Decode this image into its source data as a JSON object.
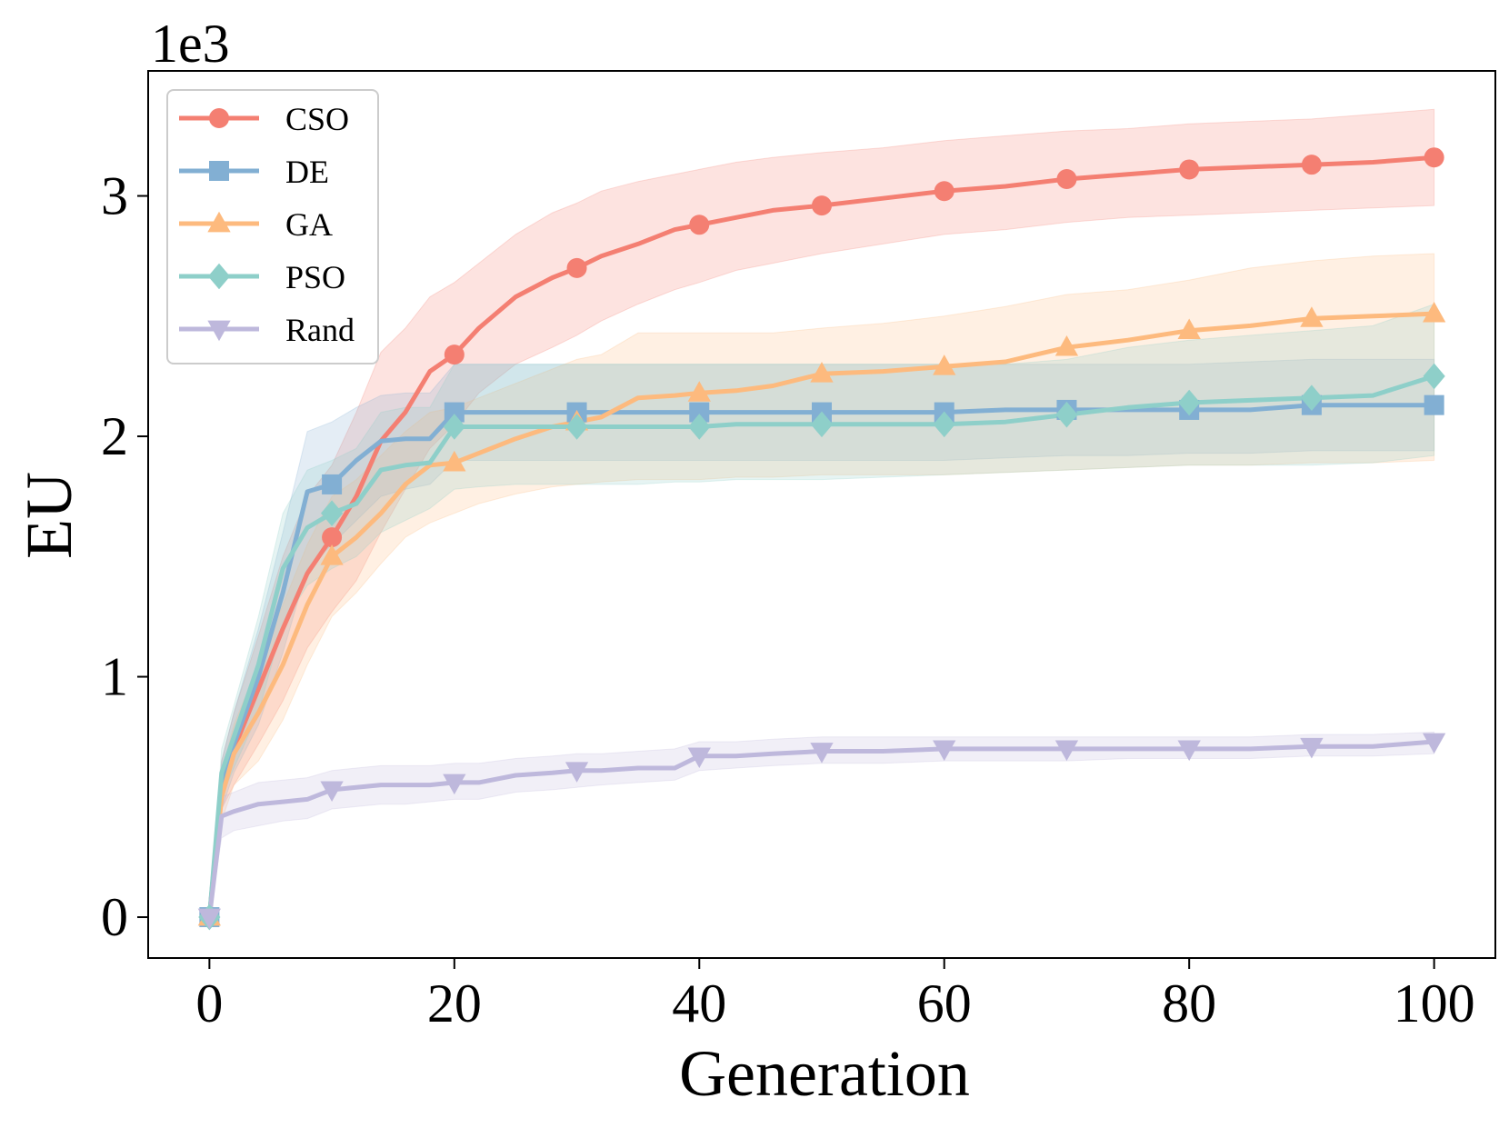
{
  "chart_data": {
    "type": "line",
    "title": "",
    "xlabel": "Generation",
    "ylabel": "EU",
    "y_multiplier_label": "1e3",
    "xlim": [
      -5,
      105
    ],
    "ylim": [
      -0.17,
      3.52
    ],
    "xticks": [
      0,
      20,
      40,
      60,
      80,
      100
    ],
    "xtick_labels": [
      "0",
      "20",
      "40",
      "60",
      "80",
      "100"
    ],
    "yticks": [
      0,
      1,
      2,
      3
    ],
    "ytick_labels": [
      "0",
      "1",
      "2",
      "3"
    ],
    "grid": false,
    "legend_position": "top-left",
    "x": [
      0,
      1,
      2,
      4,
      6,
      8,
      10,
      12,
      14,
      16,
      18,
      20,
      22,
      25,
      28,
      30,
      32,
      35,
      38,
      40,
      43,
      46,
      50,
      55,
      60,
      65,
      70,
      75,
      80,
      85,
      90,
      95,
      100
    ],
    "series": [
      {
        "name": "CSO",
        "color": "#F47F72",
        "marker": "circle",
        "values": [
          0,
          0.55,
          0.7,
          0.95,
          1.2,
          1.43,
          1.58,
          1.75,
          1.98,
          2.1,
          2.27,
          2.34,
          2.45,
          2.58,
          2.66,
          2.7,
          2.75,
          2.8,
          2.86,
          2.88,
          2.91,
          2.94,
          2.96,
          2.99,
          3.02,
          3.04,
          3.07,
          3.09,
          3.11,
          3.12,
          3.13,
          3.14,
          3.16
        ],
        "lower": [
          0,
          0.45,
          0.55,
          0.72,
          0.9,
          1.12,
          1.27,
          1.4,
          1.6,
          1.78,
          1.95,
          2.05,
          2.18,
          2.3,
          2.37,
          2.42,
          2.48,
          2.55,
          2.61,
          2.64,
          2.69,
          2.72,
          2.76,
          2.8,
          2.84,
          2.86,
          2.89,
          2.91,
          2.92,
          2.93,
          2.94,
          2.95,
          2.96
        ],
        "upper": [
          0,
          0.65,
          0.85,
          1.17,
          1.5,
          1.75,
          1.88,
          2.1,
          2.35,
          2.45,
          2.58,
          2.64,
          2.72,
          2.84,
          2.93,
          2.97,
          3.02,
          3.06,
          3.09,
          3.11,
          3.14,
          3.16,
          3.18,
          3.2,
          3.23,
          3.25,
          3.27,
          3.28,
          3.3,
          3.31,
          3.32,
          3.34,
          3.36
        ],
        "marker_x": [
          0,
          10,
          20,
          30,
          40,
          50,
          60,
          70,
          80,
          90,
          100
        ],
        "marker_values": [
          0,
          1.58,
          2.34,
          2.7,
          2.88,
          2.96,
          3.02,
          3.07,
          3.11,
          3.13,
          3.16
        ]
      },
      {
        "name": "DE",
        "color": "#82AFD3",
        "marker": "square",
        "values": [
          0,
          0.55,
          0.72,
          1.0,
          1.35,
          1.77,
          1.8,
          1.9,
          1.98,
          1.99,
          1.99,
          2.1,
          2.1,
          2.1,
          2.1,
          2.1,
          2.1,
          2.1,
          2.1,
          2.1,
          2.1,
          2.1,
          2.1,
          2.1,
          2.1,
          2.11,
          2.11,
          2.11,
          2.11,
          2.11,
          2.13,
          2.13,
          2.13
        ],
        "lower": [
          0,
          0.45,
          0.6,
          0.8,
          1.1,
          1.45,
          1.55,
          1.65,
          1.75,
          1.78,
          1.8,
          1.9,
          1.9,
          1.9,
          1.9,
          1.9,
          1.9,
          1.9,
          1.9,
          1.9,
          1.9,
          1.9,
          1.9,
          1.9,
          1.9,
          1.91,
          1.92,
          1.92,
          1.93,
          1.93,
          1.94,
          1.94,
          1.94
        ],
        "upper": [
          0,
          0.65,
          0.85,
          1.2,
          1.6,
          2.02,
          2.06,
          2.12,
          2.17,
          2.18,
          2.18,
          2.3,
          2.3,
          2.3,
          2.3,
          2.3,
          2.3,
          2.3,
          2.3,
          2.3,
          2.3,
          2.3,
          2.3,
          2.3,
          2.3,
          2.3,
          2.3,
          2.3,
          2.3,
          2.31,
          2.32,
          2.32,
          2.32
        ],
        "marker_x": [
          0,
          10,
          20,
          30,
          40,
          50,
          60,
          70,
          80,
          90,
          100
        ],
        "marker_values": [
          0,
          1.8,
          2.1,
          2.1,
          2.1,
          2.1,
          2.1,
          2.11,
          2.11,
          2.13,
          2.13
        ]
      },
      {
        "name": "GA",
        "color": "#FDBA7E",
        "marker": "triangle-up",
        "values": [
          0,
          0.5,
          0.68,
          0.85,
          1.05,
          1.3,
          1.5,
          1.58,
          1.68,
          1.8,
          1.88,
          1.89,
          1.93,
          1.99,
          2.04,
          2.06,
          2.08,
          2.16,
          2.17,
          2.18,
          2.19,
          2.21,
          2.26,
          2.27,
          2.29,
          2.31,
          2.37,
          2.4,
          2.44,
          2.46,
          2.49,
          2.5,
          2.51
        ],
        "lower": [
          0,
          0.4,
          0.55,
          0.65,
          0.82,
          1.05,
          1.25,
          1.35,
          1.47,
          1.58,
          1.64,
          1.68,
          1.72,
          1.76,
          1.79,
          1.8,
          1.81,
          1.82,
          1.82,
          1.82,
          1.83,
          1.83,
          1.84,
          1.84,
          1.84,
          1.85,
          1.86,
          1.87,
          1.88,
          1.88,
          1.89,
          1.89,
          1.9
        ],
        "upper": [
          0,
          0.6,
          0.8,
          1.05,
          1.3,
          1.55,
          1.75,
          1.82,
          1.92,
          2.02,
          2.1,
          2.12,
          2.16,
          2.22,
          2.28,
          2.32,
          2.34,
          2.43,
          2.43,
          2.43,
          2.43,
          2.43,
          2.45,
          2.47,
          2.5,
          2.54,
          2.59,
          2.61,
          2.65,
          2.7,
          2.73,
          2.75,
          2.76
        ],
        "marker_x": [
          0,
          10,
          20,
          30,
          40,
          50,
          60,
          70,
          80,
          90,
          100
        ],
        "marker_values": [
          0,
          1.5,
          1.89,
          2.06,
          2.18,
          2.26,
          2.29,
          2.37,
          2.44,
          2.49,
          2.51
        ]
      },
      {
        "name": "PSO",
        "color": "#8ECFC9",
        "marker": "diamond",
        "values": [
          0,
          0.6,
          0.75,
          1.05,
          1.45,
          1.62,
          1.68,
          1.72,
          1.86,
          1.88,
          1.89,
          2.04,
          2.04,
          2.04,
          2.04,
          2.04,
          2.04,
          2.04,
          2.04,
          2.04,
          2.05,
          2.05,
          2.05,
          2.05,
          2.05,
          2.06,
          2.09,
          2.12,
          2.14,
          2.15,
          2.16,
          2.17,
          2.25
        ],
        "lower": [
          0,
          0.5,
          0.62,
          0.85,
          1.22,
          1.38,
          1.45,
          1.5,
          1.6,
          1.65,
          1.7,
          1.78,
          1.79,
          1.8,
          1.8,
          1.8,
          1.8,
          1.8,
          1.81,
          1.81,
          1.82,
          1.82,
          1.82,
          1.83,
          1.84,
          1.85,
          1.86,
          1.87,
          1.88,
          1.88,
          1.88,
          1.89,
          1.92
        ],
        "upper": [
          0,
          0.7,
          0.88,
          1.25,
          1.68,
          1.86,
          1.9,
          1.95,
          2.1,
          2.12,
          2.12,
          2.3,
          2.3,
          2.3,
          2.3,
          2.3,
          2.3,
          2.3,
          2.3,
          2.3,
          2.3,
          2.3,
          2.3,
          2.3,
          2.3,
          2.3,
          2.32,
          2.37,
          2.4,
          2.42,
          2.44,
          2.46,
          2.55
        ],
        "marker_x": [
          0,
          10,
          20,
          30,
          40,
          50,
          60,
          70,
          80,
          90,
          100
        ],
        "marker_values": [
          0,
          1.68,
          2.04,
          2.04,
          2.04,
          2.05,
          2.05,
          2.09,
          2.14,
          2.16,
          2.25
        ]
      },
      {
        "name": "Rand",
        "color": "#BEB8DC",
        "marker": "triangle-down",
        "values": [
          0,
          0.42,
          0.44,
          0.47,
          0.48,
          0.49,
          0.53,
          0.54,
          0.55,
          0.55,
          0.55,
          0.56,
          0.56,
          0.59,
          0.6,
          0.61,
          0.61,
          0.62,
          0.62,
          0.67,
          0.67,
          0.68,
          0.69,
          0.69,
          0.7,
          0.7,
          0.7,
          0.7,
          0.7,
          0.7,
          0.71,
          0.71,
          0.73
        ],
        "lower": [
          0,
          0.33,
          0.36,
          0.38,
          0.4,
          0.41,
          0.45,
          0.46,
          0.47,
          0.47,
          0.48,
          0.49,
          0.49,
          0.52,
          0.53,
          0.54,
          0.55,
          0.56,
          0.57,
          0.61,
          0.62,
          0.63,
          0.64,
          0.64,
          0.65,
          0.65,
          0.65,
          0.66,
          0.66,
          0.66,
          0.67,
          0.67,
          0.68
        ],
        "upper": [
          0,
          0.5,
          0.52,
          0.56,
          0.57,
          0.58,
          0.61,
          0.62,
          0.63,
          0.63,
          0.63,
          0.64,
          0.64,
          0.66,
          0.67,
          0.68,
          0.68,
          0.69,
          0.7,
          0.73,
          0.73,
          0.74,
          0.75,
          0.75,
          0.75,
          0.75,
          0.75,
          0.75,
          0.75,
          0.75,
          0.76,
          0.76,
          0.77
        ],
        "marker_x": [
          0,
          10,
          20,
          30,
          40,
          50,
          60,
          70,
          80,
          90,
          100
        ],
        "marker_values": [
          0,
          0.53,
          0.56,
          0.61,
          0.67,
          0.69,
          0.7,
          0.7,
          0.7,
          0.71,
          0.73
        ]
      }
    ]
  }
}
